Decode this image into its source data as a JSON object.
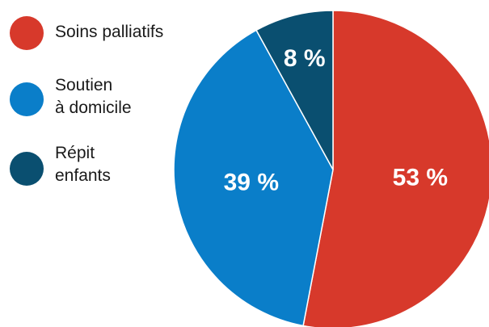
{
  "chart_data": {
    "type": "pie",
    "title": "",
    "slices": [
      {
        "label": "Soins palliatifs",
        "value": 53,
        "value_label": "53 %",
        "color": "#d7392b"
      },
      {
        "label": "Soutien\nà domicile",
        "value": 39,
        "value_label": "39 %",
        "color": "#0a7ec9"
      },
      {
        "label": "Répit\nenfants",
        "value": 8,
        "value_label": "8 %",
        "color": "#0a4f70"
      }
    ],
    "legend_position": "left",
    "start_angle_deg": 0,
    "direction": "clockwise"
  }
}
